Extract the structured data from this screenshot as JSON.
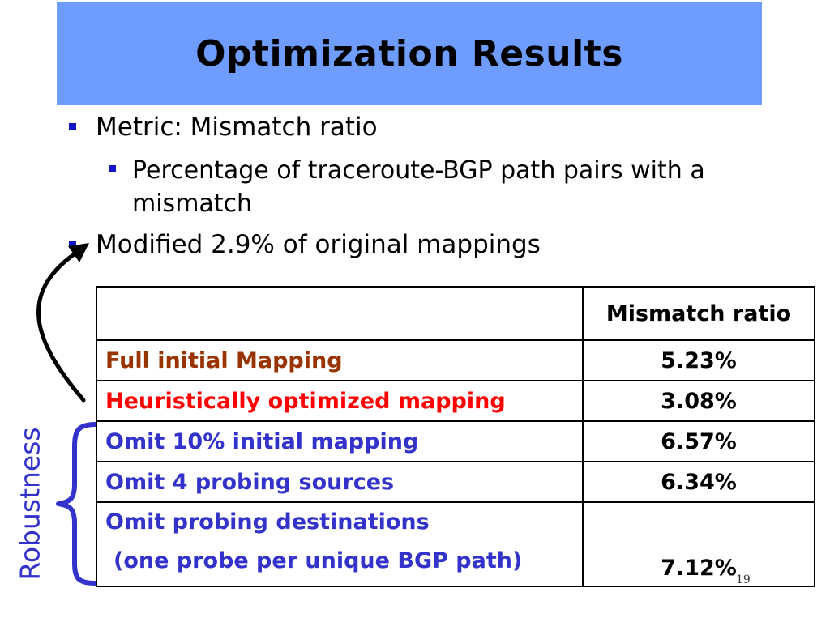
{
  "title": "Optimization Results",
  "bullets": [
    {
      "text": "Metric: Mismatch ratio",
      "level": 1
    },
    {
      "text": "Percentage of traceroute-BGP path pairs with a mismatch",
      "level": 2
    },
    {
      "text": "Modified 2.9% of original mappings",
      "level": 1
    }
  ],
  "table": {
    "header": {
      "label": "",
      "value": "Mismatch ratio"
    },
    "rows": [
      {
        "label": "Full initial Mapping",
        "value": "5.23%",
        "color": "#993300"
      },
      {
        "label": "Heuristically optimized mapping",
        "value": "3.08%",
        "color": "#ff0000"
      },
      {
        "label": "Omit 10% initial mapping",
        "value": "6.57%",
        "color": "#3333cc"
      },
      {
        "label": "Omit 4 probing sources",
        "value": "6.34%",
        "color": "#3333cc"
      },
      {
        "label": "Omit probing destinations",
        "label_line2": "(one probe per unique BGP path)",
        "value": "7.12%",
        "color": "#3333cc"
      }
    ]
  },
  "side_label": "Robustness",
  "page_number": "19",
  "colors": {
    "title_bar": "#6f9cff",
    "bullet": "#1414c8",
    "accent_blue": "#3333cc"
  }
}
